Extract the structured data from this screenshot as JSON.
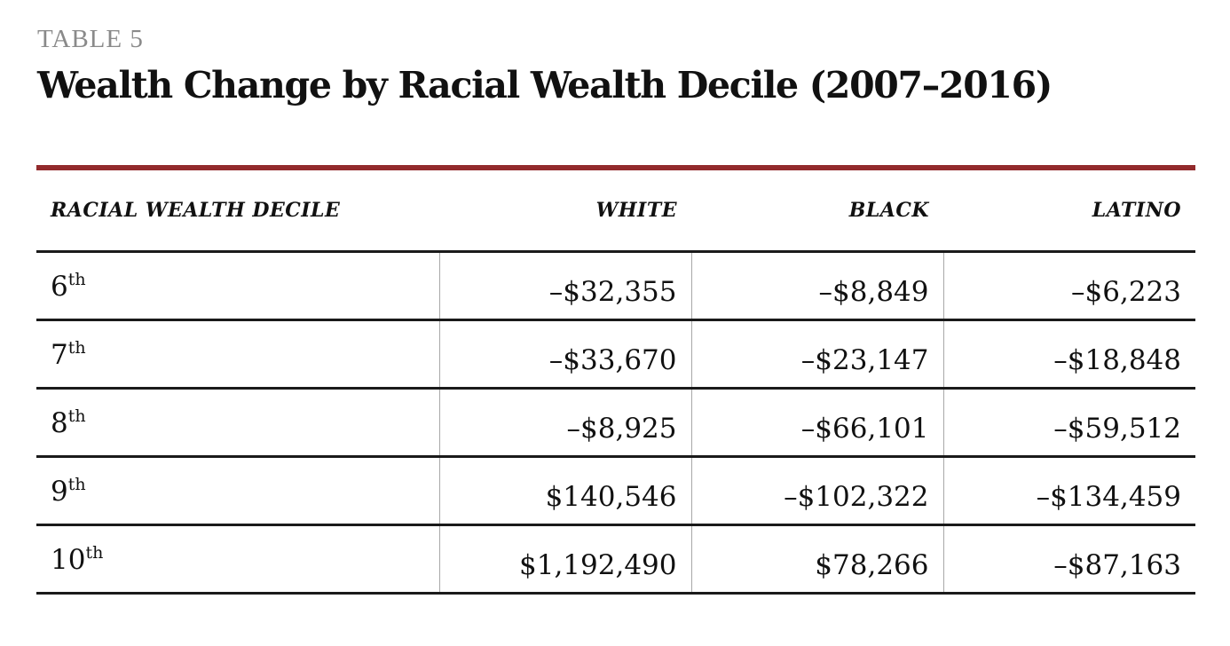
{
  "table_label": "TABLE 5",
  "title": "Wealth Change by Racial Wealth Decile (2007–2016)",
  "accent_color": "#922a2c",
  "columns": [
    "RACIAL WEALTH DECILE",
    "WHITE",
    "BLACK",
    "LATINO"
  ],
  "rows": [
    {
      "decile": "6",
      "suffix": "th",
      "white": "–$32,355",
      "black": "–$8,849",
      "latino": "–$6,223"
    },
    {
      "decile": "7",
      "suffix": "th",
      "white": "–$33,670",
      "black": "–$23,147",
      "latino": "–$18,848"
    },
    {
      "decile": "8",
      "suffix": "th",
      "white": "–$8,925",
      "black": "–$66,101",
      "latino": "–$59,512"
    },
    {
      "decile": "9",
      "suffix": "th",
      "white": "$140,546",
      "black": "–$102,322",
      "latino": "–$134,459"
    },
    {
      "decile": "10",
      "suffix": "th",
      "white": "$1,192,490",
      "black": "$78,266",
      "latino": "–$87,163"
    }
  ]
}
